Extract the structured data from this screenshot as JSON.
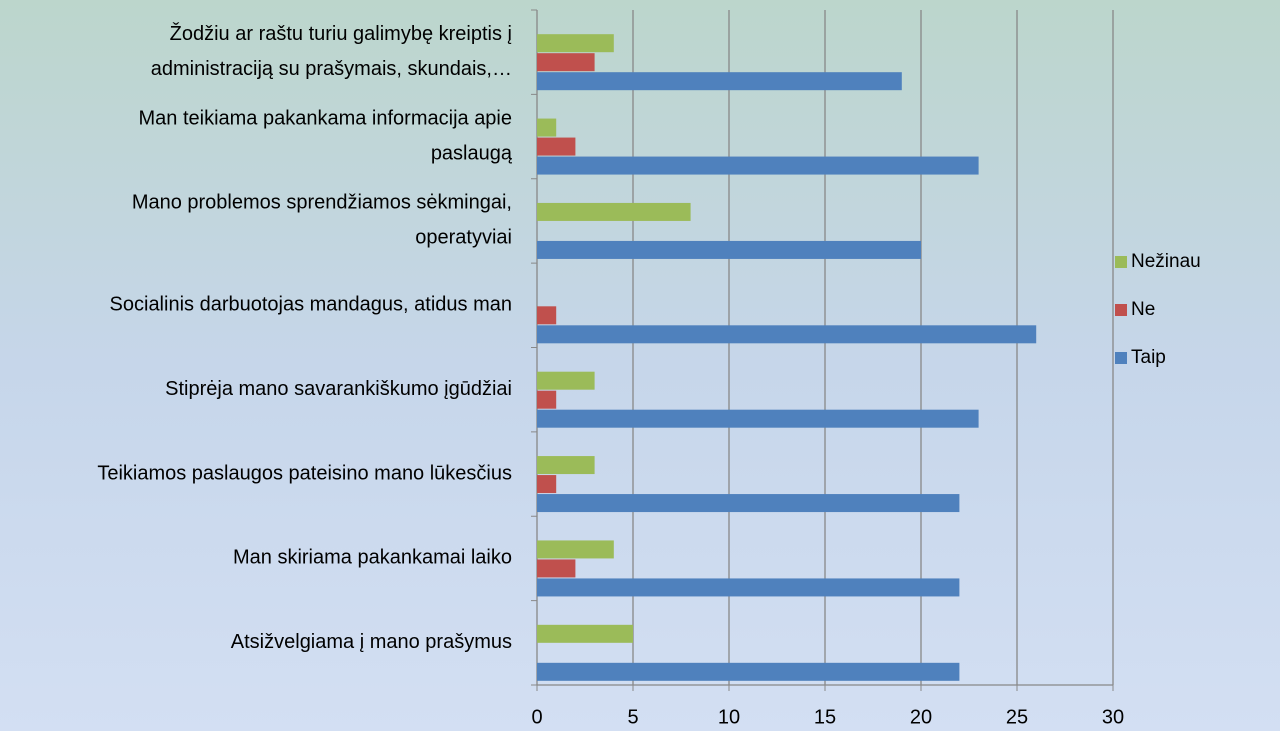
{
  "chart_data": {
    "type": "hbar",
    "categories": [
      [
        "Žodžiu ar raštu turiu galimybę kreiptis į",
        "administraciją su prašymais, skundais,…"
      ],
      [
        "Man teikiama pakankama informacija apie",
        "paslaugą"
      ],
      [
        "Mano problemos sprendžiamos sėkmingai,",
        "operatyviai"
      ],
      [
        "Socialinis darbuotojas mandagus, atidus man"
      ],
      [
        "Stiprėja mano savarankiškumo įgūdžiai"
      ],
      [
        "Teikiamos paslaugos pateisino mano lūkesčius"
      ],
      [
        "Man skiriama pakankamai laiko"
      ],
      [
        "Atsižvelgiama į mano prašymus"
      ]
    ],
    "series": [
      {
        "name": "Nežinau",
        "color": "#9bbb59",
        "values": [
          4,
          1,
          8,
          null,
          3,
          3,
          4,
          5
        ]
      },
      {
        "name": "Ne",
        "color": "#c0504d",
        "values": [
          3,
          2,
          null,
          1,
          1,
          1,
          2,
          null
        ]
      },
      {
        "name": "Taip",
        "color": "#4f81bd",
        "values": [
          19,
          23,
          20,
          26,
          23,
          22,
          22,
          22
        ]
      }
    ],
    "xlim": [
      0,
      30
    ],
    "xticks": [
      0,
      5,
      10,
      15,
      20,
      25,
      30
    ],
    "grid": true,
    "legend": "right"
  }
}
